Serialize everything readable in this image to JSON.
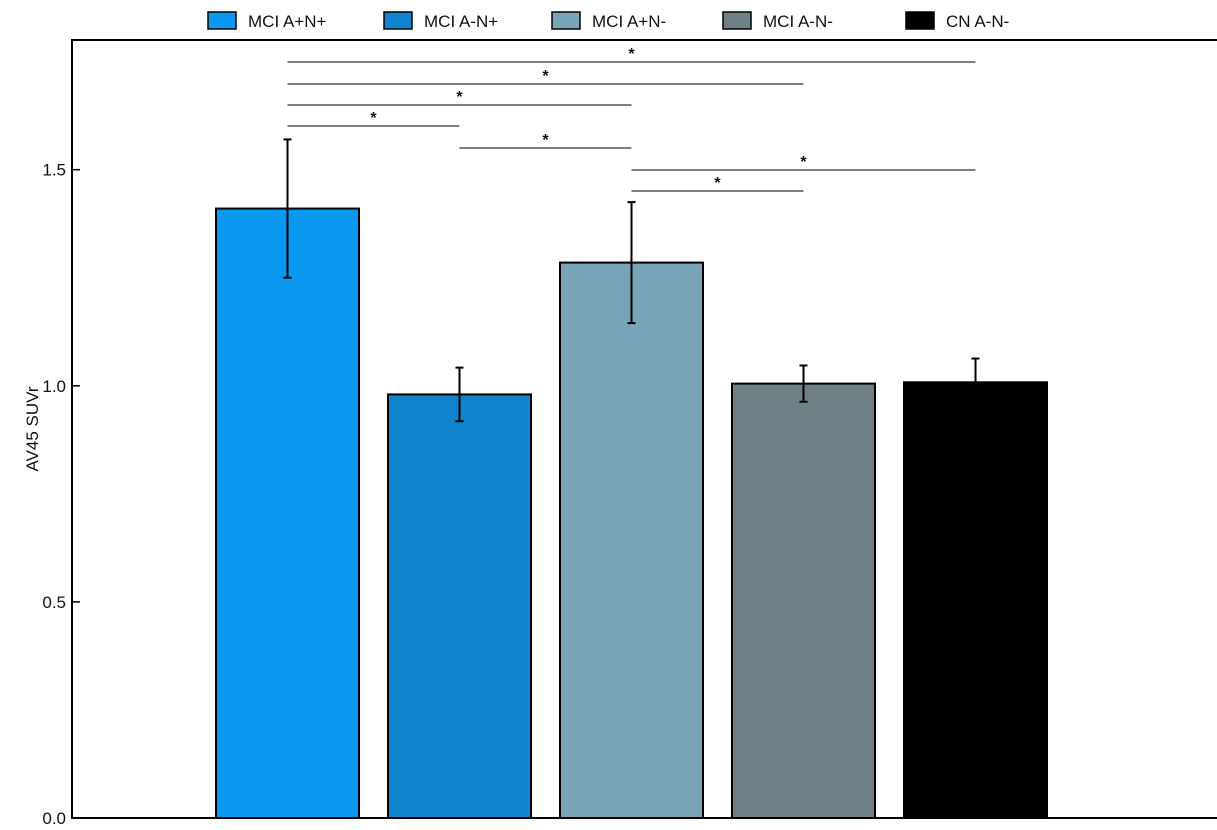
{
  "chart_data": {
    "type": "bar",
    "title": "",
    "xlabel": "",
    "ylabel": "AV45 SUVr",
    "ylim": [
      0,
      1.8
    ],
    "yticks": [
      "0.0",
      "0.5",
      "1.0",
      "1.5"
    ],
    "grid": false,
    "legend_position": "top",
    "categories": [
      "MCI A+N+",
      "MCI A-N+",
      "MCI A+N-",
      "MCI A-N-",
      "CN A-N-"
    ],
    "values": [
      1.41,
      0.98,
      1.285,
      1.005,
      1.008
    ],
    "error": [
      0.16,
      0.062,
      0.14,
      0.042,
      0.055
    ],
    "colors": [
      "#0a98f0",
      "#1184cd",
      "#79a3b7",
      "#6f8187",
      "#000000"
    ],
    "significance": [
      {
        "from": 0,
        "to": 4,
        "label": "*"
      },
      {
        "from": 0,
        "to": 3,
        "label": "*"
      },
      {
        "from": 0,
        "to": 2,
        "label": "*"
      },
      {
        "from": 0,
        "to": 1,
        "label": "*"
      },
      {
        "from": 1,
        "to": 2,
        "label": "*"
      },
      {
        "from": 2,
        "to": 4,
        "label": "*"
      },
      {
        "from": 2,
        "to": 3,
        "label": "*"
      }
    ]
  }
}
